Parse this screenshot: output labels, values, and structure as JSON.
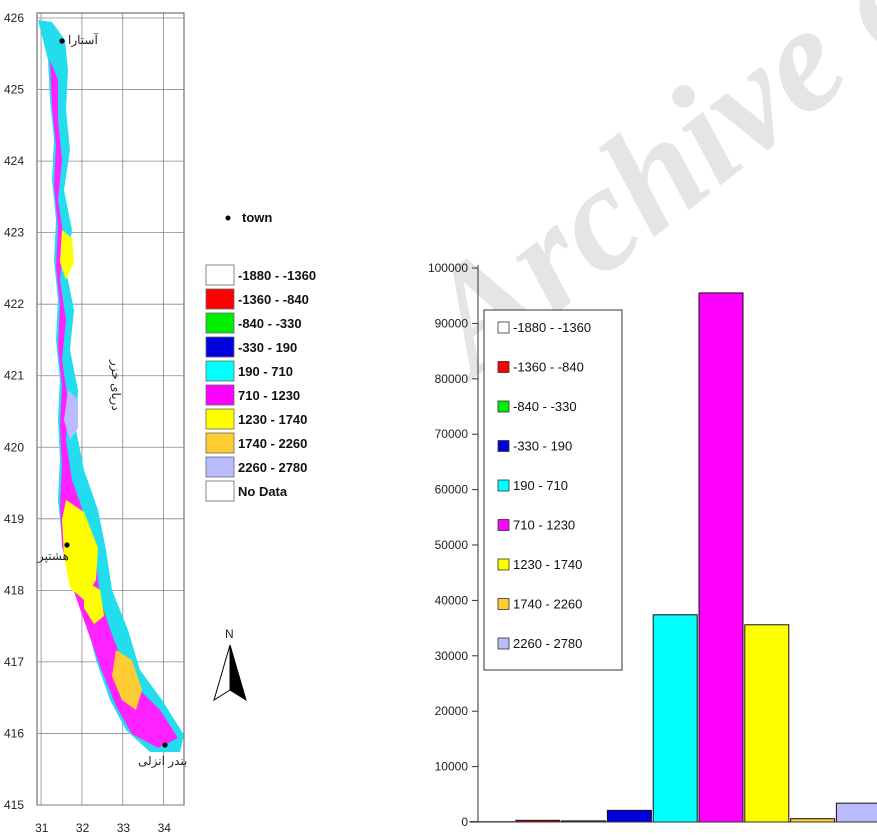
{
  "map": {
    "y_ticks": [
      "426",
      "425",
      "424",
      "423",
      "422",
      "421",
      "420",
      "419",
      "418",
      "417",
      "416",
      "415"
    ],
    "x_ticks": [
      "31",
      "32",
      "33",
      "34"
    ],
    "towns": [
      "آستارا",
      "هشتپر",
      "بندر انزلی"
    ],
    "sea_label": "دریای خزر",
    "north_label": "N"
  },
  "legend": {
    "town_label": "town",
    "classes": [
      {
        "label": "-1880 - -1360",
        "color": "#ffffff"
      },
      {
        "label": "-1360 - -840",
        "color": "#ff0000"
      },
      {
        "label": "-840 - -330",
        "color": "#00ee00"
      },
      {
        "label": "-330 - 190",
        "color": "#0000dd"
      },
      {
        "label": "190 - 710",
        "color": "#00ffff"
      },
      {
        "label": "710 - 1230",
        "color": "#ff00ff"
      },
      {
        "label": "1230 - 1740",
        "color": "#ffff00"
      },
      {
        "label": "1740 - 2260",
        "color": "#ffcc33"
      },
      {
        "label": "2260 - 2780",
        "color": "#bbbbff"
      }
    ],
    "no_data_label": "No Data"
  },
  "chart_data": {
    "type": "bar",
    "categories": [
      "-1880 - -1360",
      "-1360 - -840",
      "-840 - -330",
      "-330 - 190",
      "190 - 710",
      "710 - 1230",
      "1230 - 1740",
      "1740 - 2260",
      "2260 - 2780"
    ],
    "values": [
      50,
      300,
      200,
      2100,
      37400,
      95500,
      35600,
      600,
      3400
    ],
    "colors": [
      "#ffffff",
      "#ff0000",
      "#00ee00",
      "#0000dd",
      "#00ffff",
      "#ff00ff",
      "#ffff00",
      "#ffcc33",
      "#bbbbff"
    ],
    "ylim": [
      0,
      100000
    ],
    "y_ticks": [
      "0",
      "10000",
      "20000",
      "30000",
      "40000",
      "50000",
      "60000",
      "70000",
      "80000",
      "90000",
      "100000"
    ],
    "legend_entries": [
      "-1880 - -1360",
      "-1360 - -840",
      "-840 - -330",
      "-330 - 190",
      "190 - 710",
      "710 - 1230",
      "1230 - 1740",
      "1740 - 2260",
      "2260 - 2780"
    ]
  }
}
